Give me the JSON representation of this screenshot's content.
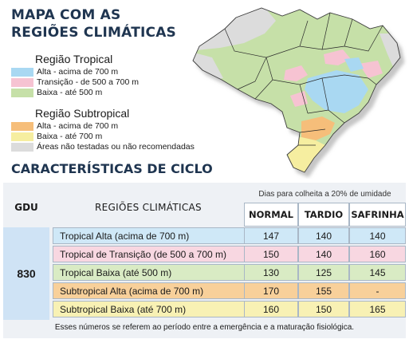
{
  "title": "MAPA COM AS REGIÕES CLIMÁTICAS",
  "legend": {
    "tropical_heading": "Região Tropical",
    "subtropical_heading": "Região Subtropical",
    "items": [
      {
        "label": "Alta - acima de 700 m",
        "color": "#a9d8f2"
      },
      {
        "label": "Transição - de 500 a 700 m",
        "color": "#f6c3d2"
      },
      {
        "label": "Baixa - até 500 m",
        "color": "#c6e0a8"
      },
      {
        "label": "Alta - acima de 700 m",
        "color": "#f6be7a"
      },
      {
        "label": "Baixa - até 700 m",
        "color": "#f6eea0"
      },
      {
        "label": "Áreas não testadas ou não recomendadas",
        "color": "#dcdcdc"
      }
    ]
  },
  "cycle_title": "CARACTERÍSTICAS DE CICLO",
  "table": {
    "gdu_header": "GDU",
    "regions_header": "REGIÕES CLIMÁTICAS",
    "days_note": "Dias para colheita a 20% de umidade",
    "columns": [
      "NORMAL",
      "TARDIO",
      "SAFRINHA"
    ],
    "gdu_value": "830",
    "rows": [
      {
        "region": "Tropical Alta (acima de 700 m)",
        "values": [
          "147",
          "140",
          "140"
        ],
        "color": "#cfe8f7"
      },
      {
        "region": "Tropical de Transição (de 500 a 700 m)",
        "values": [
          "150",
          "140",
          "160"
        ],
        "color": "#f8d7e1"
      },
      {
        "region": "Tropical Baixa (até 500 m)",
        "values": [
          "130",
          "125",
          "145"
        ],
        "color": "#d9ebc4"
      },
      {
        "region": "Subtropical Alta (acima de 700 m)",
        "values": [
          "170",
          "155",
          "-"
        ],
        "color": "#f8d09a"
      },
      {
        "region": "Subtropical Baixa (até 700 m)",
        "values": [
          "160",
          "150",
          "165"
        ],
        "color": "#f8f1b4"
      }
    ],
    "footnote": "Esses números se referem ao período entre a emergência e a maturação fisiológica."
  }
}
